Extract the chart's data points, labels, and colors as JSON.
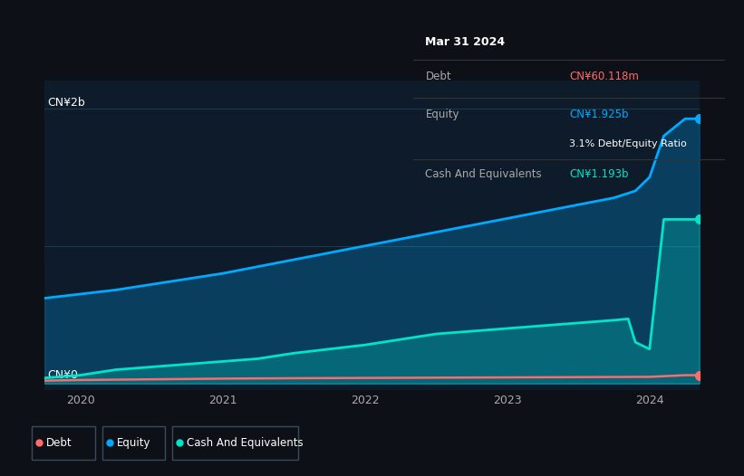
{
  "bg_color": "#0d1117",
  "plot_bg_color": "#0d1b2a",
  "x_ticks": [
    2020,
    2021,
    2022,
    2023,
    2024
  ],
  "tooltip": {
    "date": "Mar 31 2024",
    "debt_label": "Debt",
    "debt_value": "CN¥60.118m",
    "equity_label": "Equity",
    "equity_value": "CN¥1.925b",
    "ratio_text": "3.1% Debt/Equity Ratio",
    "cash_label": "Cash And Equivalents",
    "cash_value": "CN¥1.193b"
  },
  "debt_color": "#ff6b6b",
  "equity_color": "#00aaff",
  "cash_color": "#00e5c8",
  "legend_border_color": "#3a4a5a",
  "grid_color": "#1e3a4a",
  "year_start": 2019.75,
  "year_end": 2024.35,
  "equity_data": {
    "x": [
      2019.75,
      2020.0,
      2020.25,
      2020.5,
      2020.75,
      2021.0,
      2021.25,
      2021.5,
      2021.75,
      2022.0,
      2022.25,
      2022.5,
      2022.75,
      2023.0,
      2023.25,
      2023.5,
      2023.75,
      2023.9,
      2024.0,
      2024.1,
      2024.25,
      2024.35
    ],
    "y": [
      0.62,
      0.65,
      0.68,
      0.72,
      0.76,
      0.8,
      0.85,
      0.9,
      0.95,
      1.0,
      1.05,
      1.1,
      1.15,
      1.2,
      1.25,
      1.3,
      1.35,
      1.4,
      1.5,
      1.8,
      1.925,
      1.925
    ]
  },
  "cash_data": {
    "x": [
      2019.75,
      2020.0,
      2020.25,
      2020.5,
      2020.75,
      2021.0,
      2021.25,
      2021.5,
      2021.75,
      2022.0,
      2022.25,
      2022.5,
      2022.75,
      2023.0,
      2023.25,
      2023.5,
      2023.75,
      2023.85,
      2023.9,
      2024.0,
      2024.1,
      2024.25,
      2024.35
    ],
    "y": [
      0.04,
      0.06,
      0.1,
      0.12,
      0.14,
      0.16,
      0.18,
      0.22,
      0.25,
      0.28,
      0.32,
      0.36,
      0.38,
      0.4,
      0.42,
      0.44,
      0.46,
      0.47,
      0.3,
      0.25,
      1.193,
      1.193,
      1.193
    ]
  },
  "debt_data": {
    "x": [
      2019.75,
      2020.0,
      2020.5,
      2021.0,
      2021.5,
      2022.0,
      2022.5,
      2023.0,
      2023.5,
      2024.0,
      2024.25,
      2024.35
    ],
    "y": [
      0.02,
      0.025,
      0.03,
      0.035,
      0.038,
      0.04,
      0.042,
      0.044,
      0.046,
      0.048,
      0.06,
      0.06
    ]
  },
  "ylim": [
    -0.05,
    2.2
  ],
  "ytick_labels": [
    "CN¥0",
    "CN¥2b"
  ],
  "ytick_values": [
    0.0,
    2.0
  ]
}
